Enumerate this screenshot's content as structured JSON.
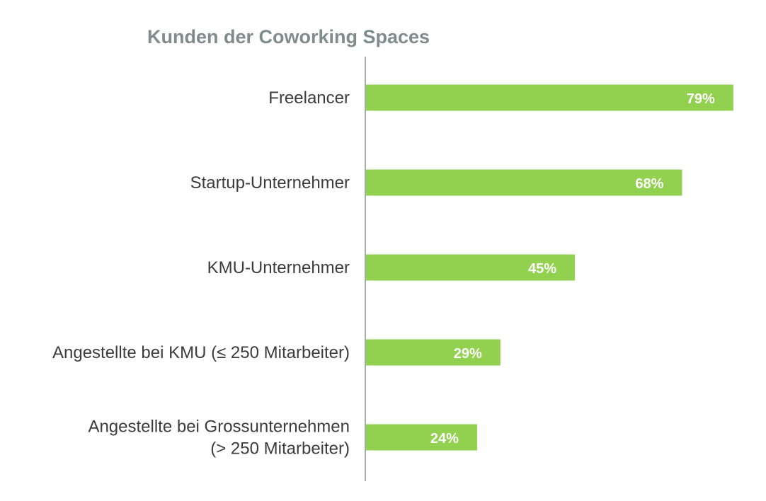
{
  "chart_data": {
    "type": "bar",
    "orientation": "horizontal",
    "title": "Kunden der Coworking Spaces",
    "categories": [
      [
        "Freelancer"
      ],
      [
        "Startup-Unternehmer"
      ],
      [
        "KMU-Unternehmer"
      ],
      [
        "Angestellte bei KMU (≤ 250 Mitarbeiter)"
      ],
      [
        "Angestellte bei Grossunternehmen",
        "(> 250 Mitarbeiter)"
      ]
    ],
    "values": [
      79,
      68,
      45,
      29,
      24
    ],
    "value_labels": [
      "79%",
      "68%",
      "45%",
      "29%",
      "24%"
    ],
    "unit": "%",
    "xlim": [
      0,
      100
    ],
    "grid": false,
    "colors": {
      "bar": "#92d050",
      "title": "#7f8c8d",
      "axis": "#a8acaf",
      "category_text": "#3c3c3c",
      "value_text": "#ffffff"
    }
  }
}
